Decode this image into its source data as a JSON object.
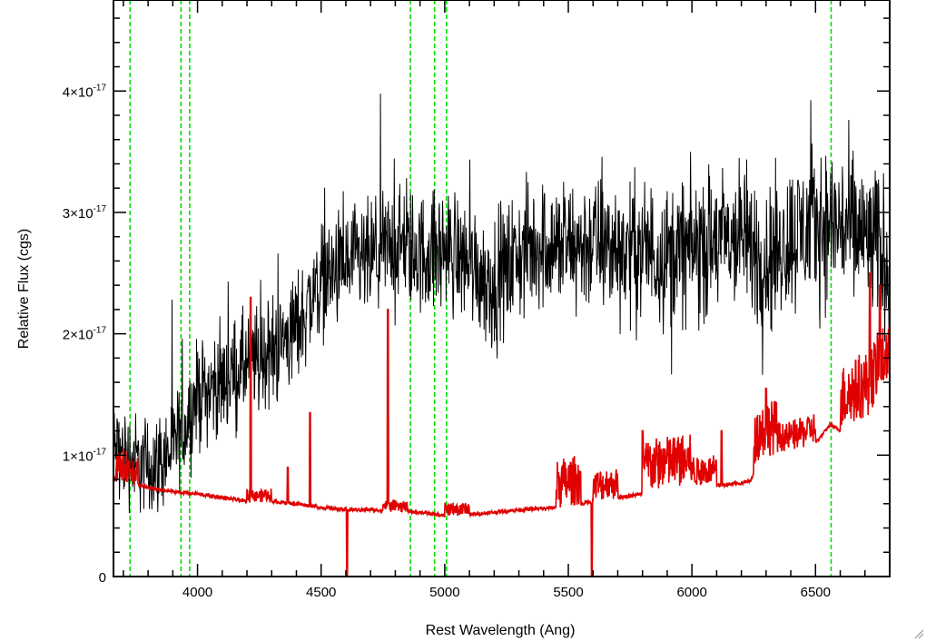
{
  "chart_data": {
    "type": "line",
    "title": "",
    "xlabel": "Rest Wavelength (Ang)",
    "ylabel": "Relative Flux (cgs)",
    "xlim": [
      3660,
      6800
    ],
    "ylim": [
      0,
      4.75e-17
    ],
    "x_ticks": [
      {
        "value": 4000,
        "label": "4000"
      },
      {
        "value": 4500,
        "label": "4500"
      },
      {
        "value": 5000,
        "label": "5000"
      },
      {
        "value": 5500,
        "label": "5500"
      },
      {
        "value": 6000,
        "label": "6000"
      },
      {
        "value": 6500,
        "label": "6500"
      }
    ],
    "x_minor_step": 100,
    "y_ticks": [
      {
        "value": 0,
        "mant": "0",
        "exp": ""
      },
      {
        "value": 1e-17,
        "mant": "1×10",
        "exp": "-17"
      },
      {
        "value": 2e-17,
        "mant": "2×10",
        "exp": "-17"
      },
      {
        "value": 3e-17,
        "mant": "3×10",
        "exp": "-17"
      },
      {
        "value": 4e-17,
        "mant": "4×10",
        "exp": "-17"
      }
    ],
    "y_minor_step": 2e-18,
    "grid": false,
    "legend": "none",
    "series": [
      {
        "color": "#000000",
        "noise_sigma": 4.5e-18,
        "anchors": [
          [
            3660,
            1.05e-17
          ],
          [
            3700,
            1e-17
          ],
          [
            3750,
            9.5e-18
          ],
          [
            3800,
            9e-18
          ],
          [
            3850,
            9.5e-18
          ],
          [
            3900,
            1.05e-17
          ],
          [
            3950,
            1.25e-17
          ],
          [
            4000,
            1.5e-17
          ],
          [
            4100,
            1.6e-17
          ],
          [
            4200,
            1.75e-17
          ],
          [
            4300,
            1.85e-17
          ],
          [
            4400,
            2.05e-17
          ],
          [
            4500,
            2.45e-17
          ],
          [
            4600,
            2.55e-17
          ],
          [
            4700,
            2.6e-17
          ],
          [
            4800,
            2.75e-17
          ],
          [
            4900,
            2.65e-17
          ],
          [
            5000,
            2.7e-17
          ],
          [
            5100,
            2.6e-17
          ],
          [
            5200,
            2.4e-17
          ],
          [
            5300,
            2.65e-17
          ],
          [
            5400,
            2.75e-17
          ],
          [
            5500,
            2.7e-17
          ],
          [
            5600,
            2.75e-17
          ],
          [
            5700,
            2.7e-17
          ],
          [
            5800,
            2.7e-17
          ],
          [
            5900,
            2.65e-17
          ],
          [
            6000,
            2.7e-17
          ],
          [
            6100,
            2.75e-17
          ],
          [
            6200,
            2.8e-17
          ],
          [
            6300,
            2.6e-17
          ],
          [
            6400,
            2.8e-17
          ],
          [
            6500,
            2.9e-17
          ],
          [
            6600,
            2.9e-17
          ],
          [
            6700,
            2.8e-17
          ],
          [
            6800,
            2.6e-17
          ]
        ]
      },
      {
        "color": "#e00000",
        "noise_sigma": 0.0,
        "anchors": [
          [
            3660,
            8e-18
          ],
          [
            3800,
            7.3e-18
          ],
          [
            3900,
            7e-18
          ],
          [
            4000,
            6.8e-18
          ],
          [
            4100,
            6.5e-18
          ],
          [
            4200,
            6.2e-18
          ],
          [
            4300,
            6.2e-18
          ],
          [
            4400,
            6e-18
          ],
          [
            4500,
            5.7e-18
          ],
          [
            4600,
            5.5e-18
          ],
          [
            4700,
            5.5e-18
          ],
          [
            4800,
            5.4e-18
          ],
          [
            4900,
            5.3e-18
          ],
          [
            5000,
            5e-18
          ],
          [
            5100,
            5.1e-18
          ],
          [
            5200,
            5.3e-18
          ],
          [
            5300,
            5.5e-18
          ],
          [
            5400,
            5.6e-18
          ],
          [
            5500,
            5.8e-18
          ],
          [
            5600,
            6.2e-18
          ],
          [
            5700,
            6.5e-18
          ],
          [
            5800,
            6.8e-18
          ],
          [
            5900,
            7.2e-18
          ],
          [
            6000,
            7.4e-18
          ],
          [
            6100,
            7.5e-18
          ],
          [
            6200,
            7.7e-18
          ],
          [
            6240,
            7.9e-18
          ],
          [
            6260,
            9.5e-18
          ],
          [
            6300,
            1e-17
          ],
          [
            6400,
            1.03e-17
          ],
          [
            6500,
            1.1e-17
          ],
          [
            6560,
            1.25e-17
          ],
          [
            6600,
            1.2e-17
          ],
          [
            6700,
            1.3e-17
          ],
          [
            6800,
            1.6e-17
          ]
        ],
        "noise_regions": [
          [
            3670,
            3760,
            2.5e-18
          ],
          [
            4200,
            4300,
            1e-18
          ],
          [
            4750,
            4850,
            8e-19
          ],
          [
            5000,
            5100,
            1e-18
          ],
          [
            5450,
            5550,
            4e-18
          ],
          [
            5600,
            5700,
            2.5e-18
          ],
          [
            5800,
            6000,
            4.5e-18
          ],
          [
            6000,
            6100,
            2.5e-18
          ],
          [
            6250,
            6350,
            4.5e-18
          ],
          [
            6350,
            6500,
            2.5e-18
          ],
          [
            6600,
            6800,
            5.5e-18
          ]
        ],
        "spikes": [
          [
            4215,
            2.3e-17
          ],
          [
            4365,
            9e-18
          ],
          [
            4455,
            1.35e-17
          ],
          [
            4770,
            2.2e-17
          ],
          [
            5800,
            1.2e-17
          ],
          [
            6120,
            1.2e-17
          ],
          [
            6300,
            1.55e-17
          ],
          [
            6720,
            2.5e-17
          ],
          [
            6760,
            2.4e-17
          ]
        ],
        "dips": [
          [
            4605,
            0
          ],
          [
            5595,
            0
          ]
        ]
      }
    ],
    "reference_lines": {
      "color": "#00dd00",
      "style": "dashed",
      "x": [
        3727,
        3933,
        3968,
        4861,
        4959,
        5007,
        6563
      ]
    }
  }
}
